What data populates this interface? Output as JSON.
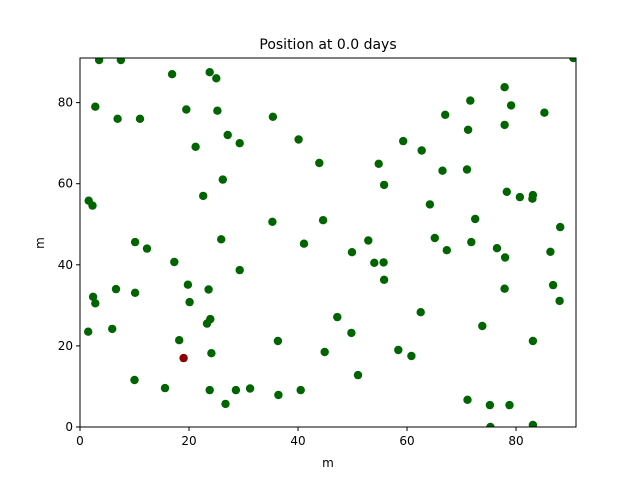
{
  "chart_data": {
    "type": "scatter",
    "title": "Position at 0.0 days",
    "xlabel": "m",
    "ylabel": "m",
    "xlim": [
      0,
      91
    ],
    "ylim": [
      0,
      91
    ],
    "xticks": [
      0,
      20,
      40,
      60,
      80
    ],
    "yticks": [
      0,
      20,
      40,
      60,
      80
    ],
    "grid": false,
    "colors": {
      "default": "#006400",
      "highlight": "#8b0000"
    },
    "points": [
      [
        3.5,
        90.5
      ],
      [
        7.5,
        90.5
      ],
      [
        16.9,
        87.0
      ],
      [
        23.8,
        87.5
      ],
      [
        25.0,
        86.0
      ],
      [
        90.5,
        91.0
      ],
      [
        2.8,
        79.0
      ],
      [
        6.9,
        76.0
      ],
      [
        11.0,
        76.0
      ],
      [
        19.5,
        78.3
      ],
      [
        25.2,
        78.0
      ],
      [
        35.4,
        76.5
      ],
      [
        77.9,
        83.8
      ],
      [
        71.6,
        80.5
      ],
      [
        79.1,
        79.3
      ],
      [
        85.2,
        77.5
      ],
      [
        67.0,
        77.0
      ],
      [
        71.2,
        73.3
      ],
      [
        77.9,
        74.5
      ],
      [
        27.1,
        72.0
      ],
      [
        29.3,
        70.0
      ],
      [
        21.2,
        69.1
      ],
      [
        40.1,
        70.9
      ],
      [
        43.9,
        65.1
      ],
      [
        59.3,
        70.5
      ],
      [
        62.7,
        68.2
      ],
      [
        54.8,
        64.9
      ],
      [
        66.5,
        63.2
      ],
      [
        71.0,
        63.5
      ],
      [
        55.8,
        59.7
      ],
      [
        26.2,
        61.0
      ],
      [
        22.6,
        57.0
      ],
      [
        78.3,
        58.0
      ],
      [
        80.7,
        56.7
      ],
      [
        83.0,
        56.3
      ],
      [
        83.1,
        57.2
      ],
      [
        64.2,
        54.9
      ],
      [
        1.6,
        55.8
      ],
      [
        2.3,
        54.6
      ],
      [
        35.3,
        50.6
      ],
      [
        44.6,
        51.0
      ],
      [
        72.5,
        51.3
      ],
      [
        88.1,
        49.3
      ],
      [
        10.1,
        45.6
      ],
      [
        12.3,
        44.0
      ],
      [
        25.9,
        46.3
      ],
      [
        41.1,
        45.2
      ],
      [
        52.9,
        46.0
      ],
      [
        65.1,
        46.6
      ],
      [
        71.8,
        45.6
      ],
      [
        76.5,
        44.1
      ],
      [
        67.3,
        43.6
      ],
      [
        49.9,
        43.1
      ],
      [
        86.3,
        43.2
      ],
      [
        78.0,
        41.8
      ],
      [
        17.3,
        40.7
      ],
      [
        54.0,
        40.5
      ],
      [
        55.7,
        40.6
      ],
      [
        29.3,
        38.7
      ],
      [
        55.8,
        36.3
      ],
      [
        19.8,
        35.1
      ],
      [
        6.6,
        34.0
      ],
      [
        23.6,
        33.9
      ],
      [
        10.1,
        33.1
      ],
      [
        86.8,
        35.0
      ],
      [
        77.9,
        34.1
      ],
      [
        2.4,
        32.1
      ],
      [
        2.8,
        30.5
      ],
      [
        20.1,
        30.8
      ],
      [
        88.0,
        31.1
      ],
      [
        62.5,
        28.3
      ],
      [
        47.2,
        27.1
      ],
      [
        23.9,
        26.6
      ],
      [
        23.3,
        25.5
      ],
      [
        73.8,
        24.9
      ],
      [
        5.9,
        24.2
      ],
      [
        1.5,
        23.5
      ],
      [
        49.8,
        23.2
      ],
      [
        18.2,
        21.4
      ],
      [
        36.3,
        21.2
      ],
      [
        83.1,
        21.2
      ],
      [
        24.1,
        18.2
      ],
      [
        44.9,
        18.5
      ],
      [
        58.4,
        19.0
      ],
      [
        60.8,
        17.5
      ],
      [
        51.0,
        12.8
      ],
      [
        10.0,
        11.6
      ],
      [
        15.6,
        9.6
      ],
      [
        23.8,
        9.1
      ],
      [
        28.6,
        9.1
      ],
      [
        31.2,
        9.5
      ],
      [
        40.5,
        9.1
      ],
      [
        36.4,
        7.9
      ],
      [
        26.7,
        5.7
      ],
      [
        71.1,
        6.7
      ],
      [
        75.2,
        5.4
      ],
      [
        78.8,
        5.4
      ],
      [
        75.3,
        0.0
      ],
      [
        83.1,
        0.5
      ]
    ],
    "highlight_points": [
      [
        19.0,
        17.0
      ]
    ]
  }
}
